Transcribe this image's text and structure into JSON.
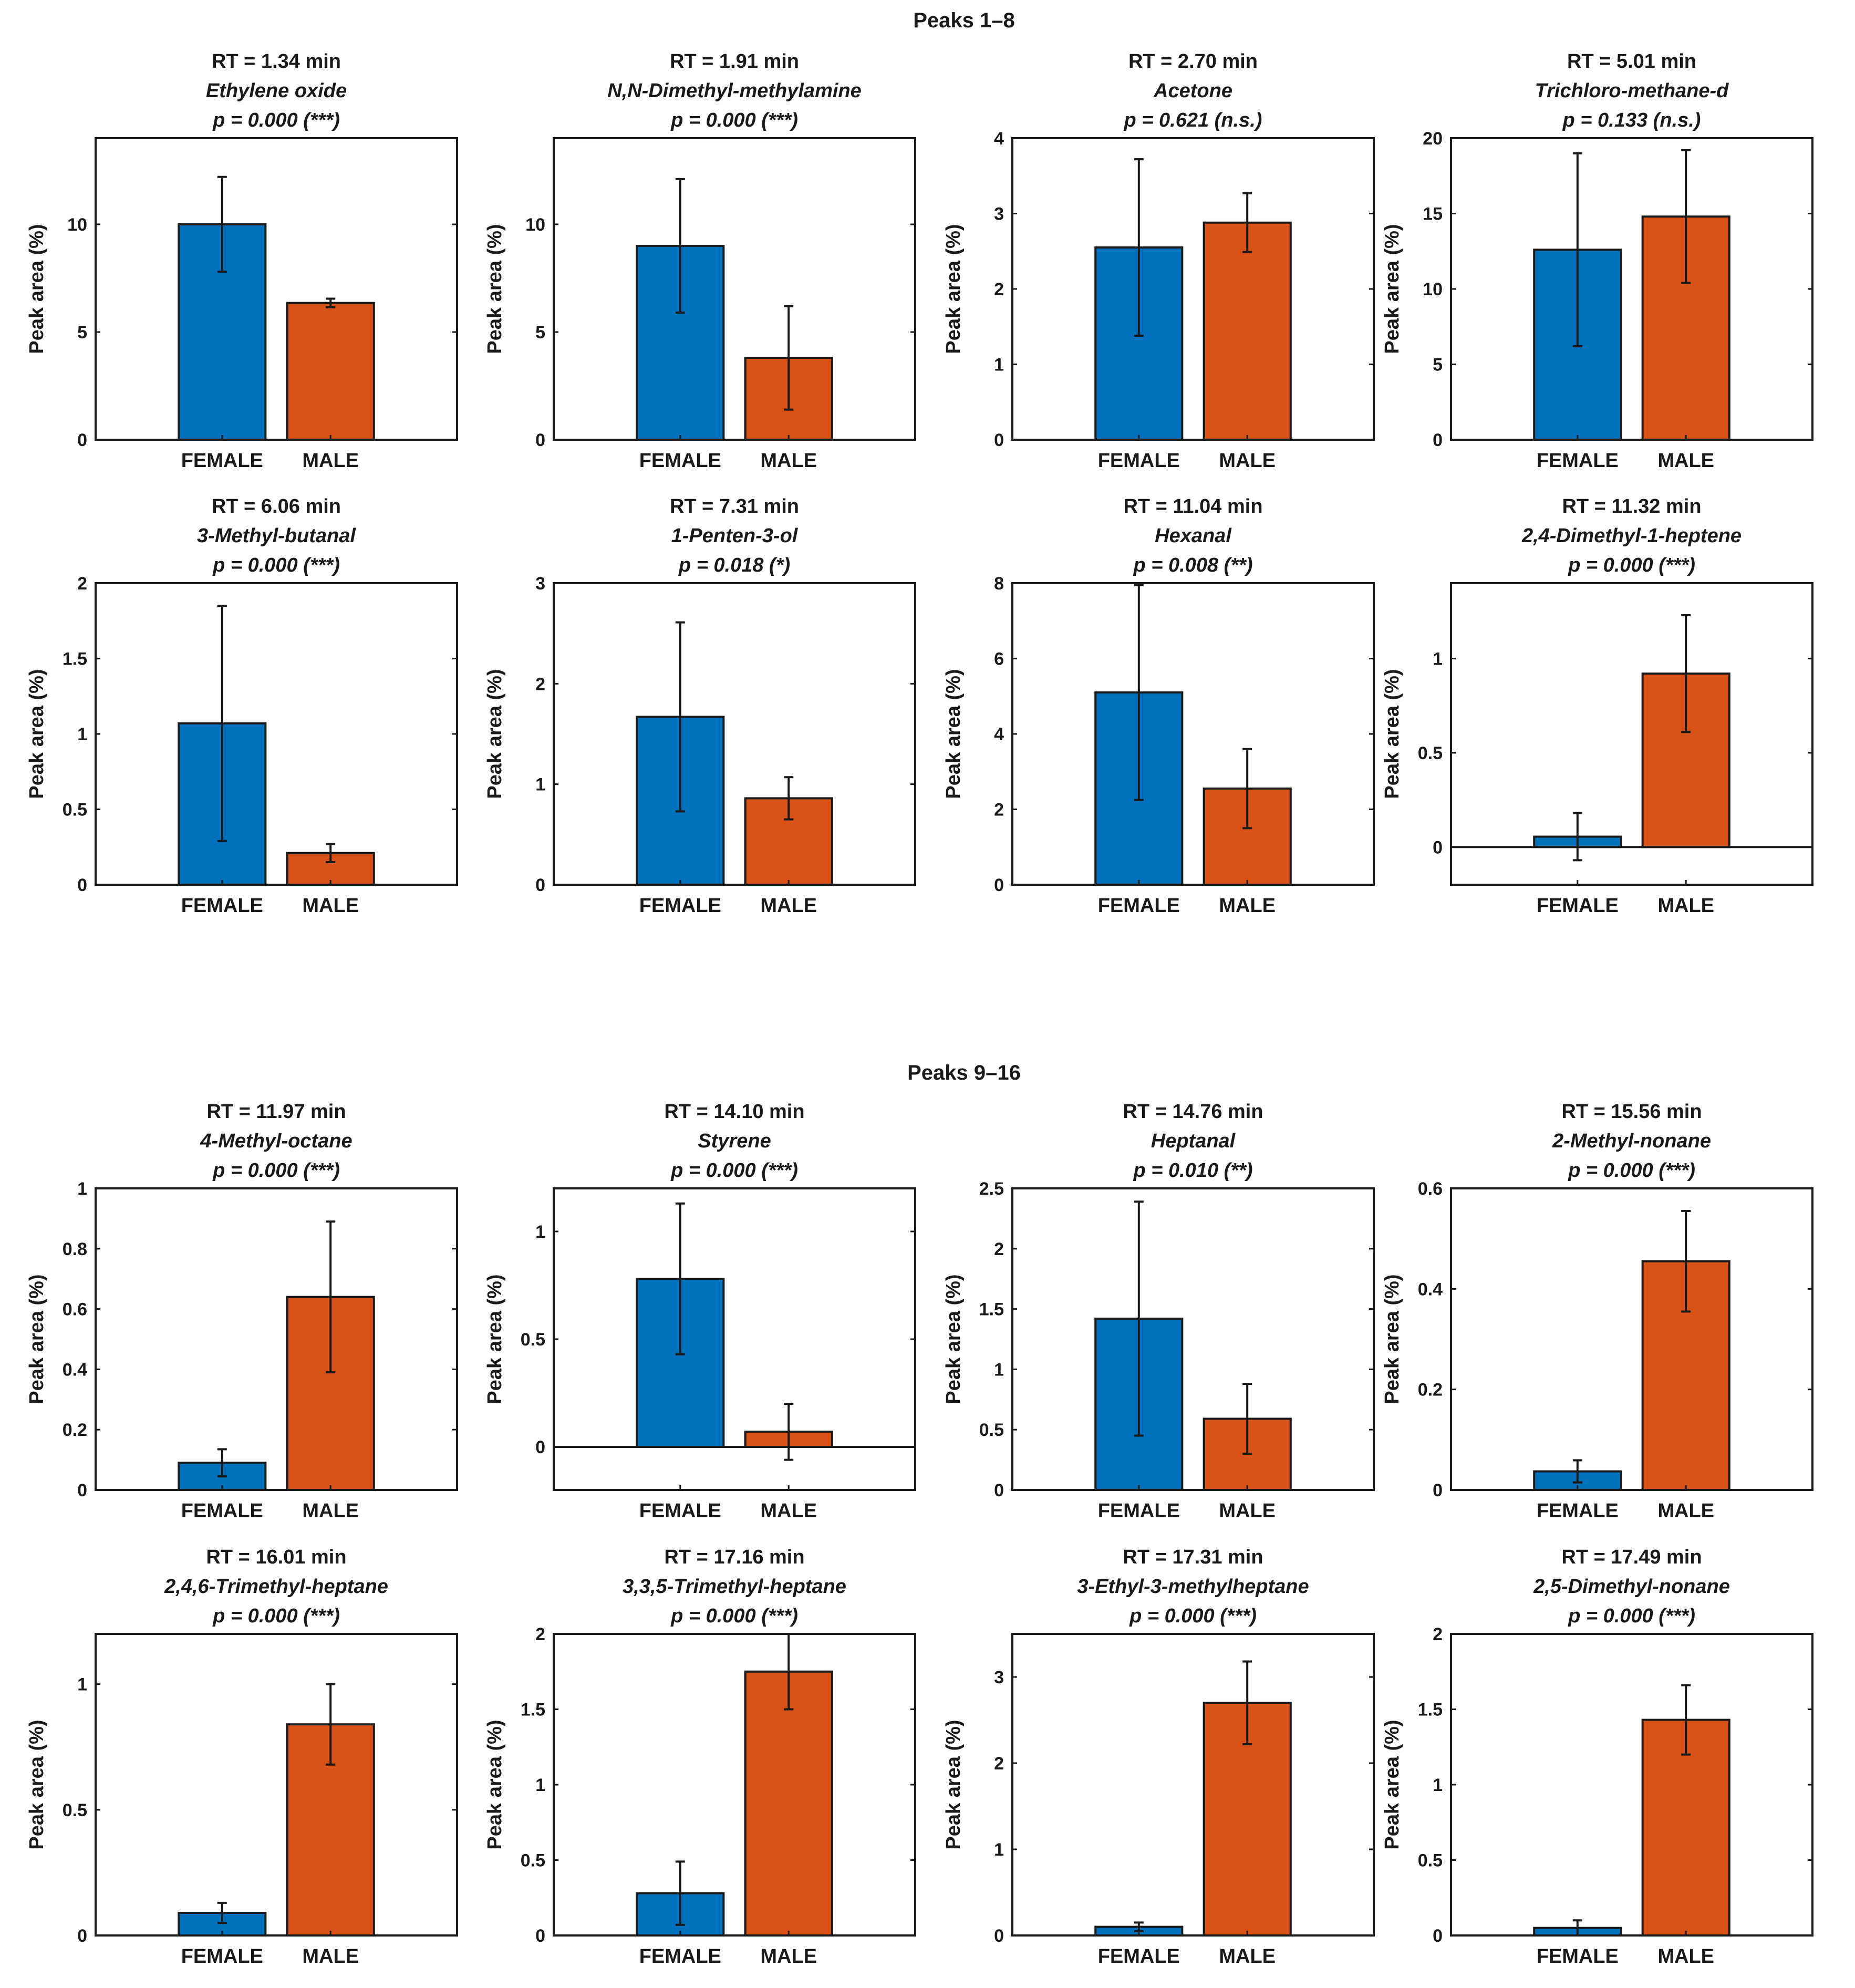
{
  "sections": [
    {
      "title": "Peaks 1–8"
    },
    {
      "title": "Peaks 9–16"
    }
  ],
  "colors": {
    "female": "#0072BD",
    "male": "#D95319",
    "axis": "#1a1a1a"
  },
  "chart_data": [
    {
      "type": "bar",
      "rt": "RT = 1.34 min",
      "compound": "Ethylene oxide",
      "pvalue": "p = 0.000 (***)",
      "ylabel": "Peak area (%)",
      "categories": [
        "FEMALE",
        "MALE"
      ],
      "ylim": [
        0,
        14
      ],
      "yticks": [
        0,
        5,
        10
      ],
      "yticklabels": [
        "0",
        "5",
        "10"
      ],
      "values": [
        10.0,
        6.35
      ],
      "errors": [
        2.2,
        0.2
      ]
    },
    {
      "type": "bar",
      "rt": "RT = 1.91 min",
      "compound": "N,N-Dimethyl-methylamine",
      "pvalue": "p = 0.000 (***)",
      "ylabel": "Peak area (%)",
      "categories": [
        "FEMALE",
        "MALE"
      ],
      "ylim": [
        0,
        14
      ],
      "yticks": [
        0,
        5,
        10
      ],
      "yticklabels": [
        "0",
        "5",
        "10"
      ],
      "values": [
        9.0,
        3.8
      ],
      "errors": [
        3.1,
        2.4
      ]
    },
    {
      "type": "bar",
      "rt": "RT = 2.70 min",
      "compound": "Acetone",
      "pvalue": "p = 0.621 (n.s.)",
      "ylabel": "Peak area (%)",
      "categories": [
        "FEMALE",
        "MALE"
      ],
      "ylim": [
        0,
        4
      ],
      "yticks": [
        0,
        1,
        2,
        3,
        4
      ],
      "yticklabels": [
        "0",
        "1",
        "2",
        "3",
        "4"
      ],
      "values": [
        2.55,
        2.88
      ],
      "errors": [
        1.17,
        0.39
      ]
    },
    {
      "type": "bar",
      "rt": "RT = 5.01 min",
      "compound": "Trichloro-methane-d",
      "pvalue": "p = 0.133 (n.s.)",
      "ylabel": "Peak area (%)",
      "categories": [
        "FEMALE",
        "MALE"
      ],
      "ylim": [
        0,
        20
      ],
      "yticks": [
        0,
        5,
        10,
        15,
        20
      ],
      "yticklabels": [
        "0",
        "5",
        "10",
        "15",
        "20"
      ],
      "values": [
        12.6,
        14.8
      ],
      "errors": [
        6.4,
        4.4
      ]
    },
    {
      "type": "bar",
      "rt": "RT = 6.06 min",
      "compound": "3-Methyl-butanal",
      "pvalue": "p = 0.000 (***)",
      "ylabel": "Peak area (%)",
      "categories": [
        "FEMALE",
        "MALE"
      ],
      "ylim": [
        0,
        2
      ],
      "yticks": [
        0,
        0.5,
        1,
        1.5,
        2
      ],
      "yticklabels": [
        "0",
        "0.5",
        "1",
        "1.5",
        "2"
      ],
      "values": [
        1.07,
        0.21
      ],
      "errors": [
        0.78,
        0.06
      ]
    },
    {
      "type": "bar",
      "rt": "RT = 7.31 min",
      "compound": "1-Penten-3-ol",
      "pvalue": "p = 0.018 (*)",
      "ylabel": "Peak area (%)",
      "categories": [
        "FEMALE",
        "MALE"
      ],
      "ylim": [
        0,
        3
      ],
      "yticks": [
        0,
        1,
        2,
        3
      ],
      "yticklabels": [
        "0",
        "1",
        "2",
        "3"
      ],
      "values": [
        1.67,
        0.86
      ],
      "errors": [
        0.94,
        0.21
      ]
    },
    {
      "type": "bar",
      "rt": "RT = 11.04 min",
      "compound": "Hexanal",
      "pvalue": "p = 0.008 (**)",
      "ylabel": "Peak area (%)",
      "categories": [
        "FEMALE",
        "MALE"
      ],
      "ylim": [
        0,
        8
      ],
      "yticks": [
        0,
        2,
        4,
        6,
        8
      ],
      "yticklabels": [
        "0",
        "2",
        "4",
        "6",
        "8"
      ],
      "values": [
        5.1,
        2.55
      ],
      "errors": [
        2.85,
        1.05
      ]
    },
    {
      "type": "bar",
      "rt": "RT = 11.32 min",
      "compound": "2,4-Dimethyl-1-heptene",
      "pvalue": "p = 0.000 (***)",
      "ylabel": "Peak area (%)",
      "categories": [
        "FEMALE",
        "MALE"
      ],
      "ylim": [
        -0.2,
        1.4
      ],
      "yticks": [
        0,
        0.5,
        1
      ],
      "yticklabels": [
        "0",
        "0.5",
        "1"
      ],
      "values": [
        0.055,
        0.92
      ],
      "errors": [
        0.125,
        0.31
      ]
    },
    {
      "type": "bar",
      "rt": "RT = 11.97 min",
      "compound": "4-Methyl-octane",
      "pvalue": "p = 0.000 (***)",
      "ylabel": "Peak area (%)",
      "categories": [
        "FEMALE",
        "MALE"
      ],
      "ylim": [
        0,
        1
      ],
      "yticks": [
        0,
        0.2,
        0.4,
        0.6,
        0.8,
        1
      ],
      "yticklabels": [
        "0",
        "0.2",
        "0.4",
        "0.6",
        "0.8",
        "1"
      ],
      "values": [
        0.09,
        0.64
      ],
      "errors": [
        0.045,
        0.25
      ]
    },
    {
      "type": "bar",
      "rt": "RT = 14.10 min",
      "compound": "Styrene",
      "pvalue": "p = 0.000 (***)",
      "ylabel": "Peak area (%)",
      "categories": [
        "FEMALE",
        "MALE"
      ],
      "ylim": [
        -0.2,
        1.2
      ],
      "yticks": [
        0,
        0.5,
        1
      ],
      "yticklabels": [
        "0",
        "0.5",
        "1"
      ],
      "values": [
        0.78,
        0.07
      ],
      "errors": [
        0.35,
        0.13
      ]
    },
    {
      "type": "bar",
      "rt": "RT = 14.76 min",
      "compound": "Heptanal",
      "pvalue": "p = 0.010 (**)",
      "ylabel": "Peak area (%)",
      "categories": [
        "FEMALE",
        "MALE"
      ],
      "ylim": [
        0,
        2.5
      ],
      "yticks": [
        0,
        0.5,
        1,
        1.5,
        2,
        2.5
      ],
      "yticklabels": [
        "0",
        "0.5",
        "1",
        "1.5",
        "2",
        "2.5"
      ],
      "values": [
        1.42,
        0.59
      ],
      "errors": [
        0.97,
        0.29
      ]
    },
    {
      "type": "bar",
      "rt": "RT = 15.56 min",
      "compound": "2-Methyl-nonane",
      "pvalue": "p = 0.000 (***)",
      "ylabel": "Peak area (%)",
      "categories": [
        "FEMALE",
        "MALE"
      ],
      "ylim": [
        0,
        0.6
      ],
      "yticks": [
        0,
        0.2,
        0.4,
        0.6
      ],
      "yticklabels": [
        "0",
        "0.2",
        "0.4",
        "0.6"
      ],
      "values": [
        0.037,
        0.455
      ],
      "errors": [
        0.022,
        0.1
      ]
    },
    {
      "type": "bar",
      "rt": "RT = 16.01 min",
      "compound": "2,4,6-Trimethyl-heptane",
      "pvalue": "p = 0.000 (***)",
      "ylabel": "Peak area (%)",
      "categories": [
        "FEMALE",
        "MALE"
      ],
      "ylim": [
        0,
        1.2
      ],
      "yticks": [
        0,
        0.5,
        1
      ],
      "yticklabels": [
        "0",
        "0.5",
        "1"
      ],
      "values": [
        0.09,
        0.84
      ],
      "errors": [
        0.04,
        0.16
      ]
    },
    {
      "type": "bar",
      "rt": "RT = 17.16 min",
      "compound": "3,3,5-Trimethyl-heptane",
      "pvalue": "p = 0.000 (***)",
      "ylabel": "Peak area (%)",
      "categories": [
        "FEMALE",
        "MALE"
      ],
      "ylim": [
        0,
        2
      ],
      "yticks": [
        0,
        0.5,
        1,
        1.5,
        2
      ],
      "yticklabels": [
        "0",
        "0.5",
        "1",
        "1.5",
        "2"
      ],
      "values": [
        0.28,
        1.75
      ],
      "errors": [
        0.21,
        0.25
      ]
    },
    {
      "type": "bar",
      "rt": "RT = 17.31 min",
      "compound": "3-Ethyl-3-methylheptane",
      "pvalue": "p = 0.000 (***)",
      "ylabel": "Peak area (%)",
      "categories": [
        "FEMALE",
        "MALE"
      ],
      "ylim": [
        0,
        3.5
      ],
      "yticks": [
        0,
        1,
        2,
        3
      ],
      "yticklabels": [
        "0",
        "1",
        "2",
        "3"
      ],
      "values": [
        0.1,
        2.7
      ],
      "errors": [
        0.05,
        0.48
      ]
    },
    {
      "type": "bar",
      "rt": "RT = 17.49 min",
      "compound": "2,5-Dimethyl-nonane",
      "pvalue": "p = 0.000 (***)",
      "ylabel": "Peak area (%)",
      "categories": [
        "FEMALE",
        "MALE"
      ],
      "ylim": [
        0,
        2
      ],
      "yticks": [
        0,
        0.5,
        1,
        1.5,
        2
      ],
      "yticklabels": [
        "0",
        "0.5",
        "1",
        "1.5",
        "2"
      ],
      "values": [
        0.05,
        1.43
      ],
      "errors": [
        0.05,
        0.23
      ]
    }
  ]
}
